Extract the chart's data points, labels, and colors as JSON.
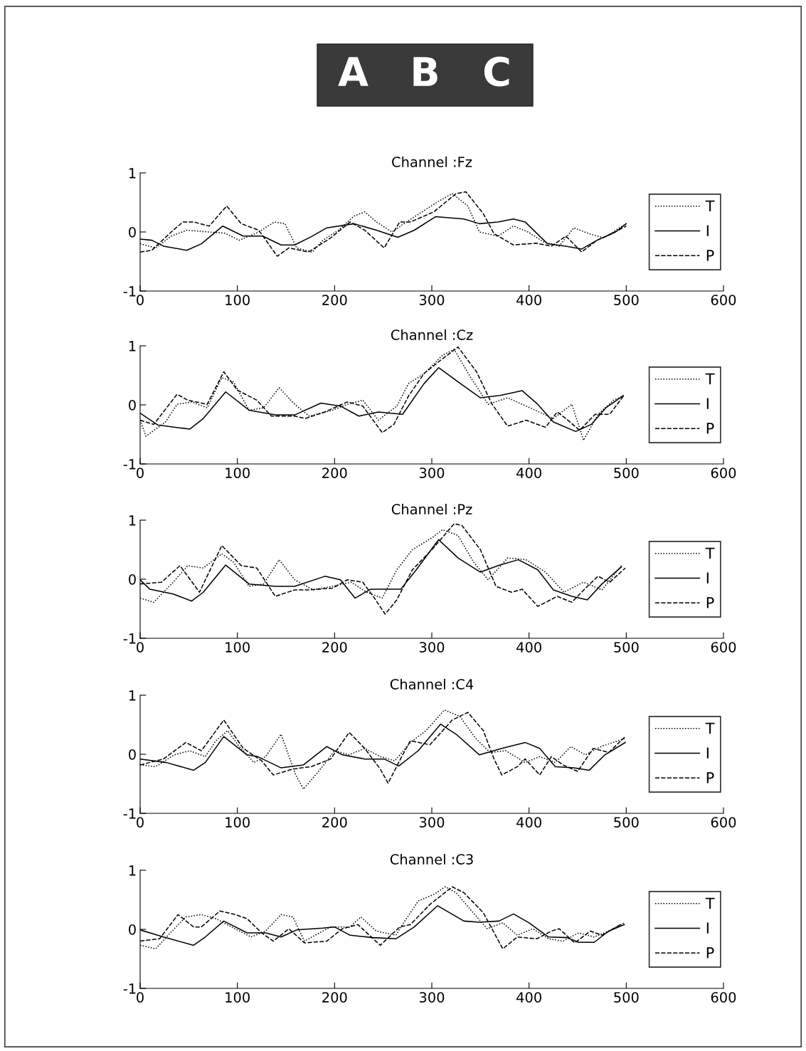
{
  "chart_data": [
    {
      "type": "line",
      "title": "Channel :Fz",
      "annotations": [
        "A",
        "B",
        "C"
      ],
      "xlim": [
        0,
        600
      ],
      "xticks": [
        0,
        100,
        200,
        300,
        400,
        500,
        600
      ],
      "ylim": [
        -1,
        1
      ],
      "yticks": [
        -1,
        0,
        1
      ],
      "grid": false,
      "legend": "right",
      "marker": "none",
      "series": [
        {
          "name": "T",
          "color": "#000000",
          "line_style": "dotted",
          "x": [
            0,
            16,
            32,
            48,
            71,
            87,
            102,
            122,
            138,
            149,
            161,
            177,
            188,
            204,
            220,
            231,
            243,
            259,
            274,
            290,
            306,
            321,
            337,
            349,
            368,
            384,
            399,
            415,
            431,
            446,
            462,
            477,
            493,
            500
          ],
          "values": [
            -0.2,
            -0.27,
            -0.07,
            0.03,
            0,
            -0.02,
            -0.14,
            0,
            0.17,
            0.14,
            -0.27,
            -0.34,
            -0.14,
            0.03,
            0.27,
            0.34,
            0.17,
            0,
            0.17,
            0.34,
            0.51,
            0.65,
            0.44,
            0,
            -0.07,
            0.1,
            0,
            -0.17,
            -0.24,
            0.07,
            -0.03,
            -0.1,
            0.07,
            0.14
          ]
        },
        {
          "name": "I",
          "color": "#000000",
          "line_style": "solid",
          "x": [
            0,
            12,
            24,
            48,
            63,
            85,
            106,
            126,
            145,
            159,
            177,
            192,
            220,
            243,
            265,
            282,
            304,
            333,
            349,
            368,
            384,
            396,
            419,
            438,
            454,
            470,
            489,
            500
          ],
          "values": [
            -0.12,
            -0.14,
            -0.24,
            -0.31,
            -0.2,
            0.1,
            -0.07,
            -0.07,
            -0.22,
            -0.22,
            -0.07,
            0.07,
            0.14,
            0.03,
            -0.09,
            0.03,
            0.26,
            0.22,
            0.14,
            0.17,
            0.22,
            0.17,
            -0.2,
            -0.24,
            -0.29,
            -0.14,
            0,
            0.14
          ]
        },
        {
          "name": "P",
          "color": "#000000",
          "line_style": "dashed",
          "x": [
            0,
            12,
            32,
            44,
            55,
            71,
            89,
            104,
            122,
            141,
            153,
            173,
            196,
            216,
            231,
            251,
            267,
            278,
            302,
            325,
            335,
            353,
            364,
            384,
            407,
            423,
            438,
            454,
            470,
            485,
            500
          ],
          "values": [
            -0.34,
            -0.31,
            0,
            0.17,
            0.17,
            0.1,
            0.44,
            0.14,
            0.03,
            -0.41,
            -0.27,
            -0.34,
            -0.1,
            0.17,
            0.03,
            -0.27,
            0.17,
            0.17,
            0.34,
            0.65,
            0.68,
            0.31,
            -0.03,
            -0.22,
            -0.19,
            -0.24,
            -0.07,
            -0.34,
            -0.14,
            -0.03,
            0.1
          ]
        }
      ]
    },
    {
      "type": "line",
      "title": "Channel :Cz",
      "xlim": [
        0,
        600
      ],
      "xticks": [
        0,
        100,
        200,
        300,
        400,
        500,
        600
      ],
      "ylim": [
        -1,
        1
      ],
      "yticks": [
        -1,
        0,
        1
      ],
      "grid": false,
      "legend": "right",
      "marker": "none",
      "series": [
        {
          "name": "T",
          "color": "#000000",
          "line_style": "dotted",
          "x": [
            0,
            6,
            26,
            38,
            53,
            69,
            84,
            96,
            112,
            127,
            143,
            159,
            174,
            198,
            213,
            229,
            245,
            264,
            276,
            292,
            311,
            323,
            339,
            358,
            378,
            401,
            425,
            444,
            456,
            471,
            487,
            497
          ],
          "values": [
            -0.26,
            -0.53,
            -0.29,
            0.01,
            0.05,
            -0.05,
            0.46,
            0.39,
            -0.09,
            -0.05,
            0.29,
            0.01,
            -0.19,
            -0.09,
            0.01,
            0.08,
            -0.26,
            -0.02,
            0.36,
            0.53,
            0.84,
            0.94,
            0.49,
            0.01,
            0.12,
            -0.05,
            -0.23,
            0.01,
            -0.6,
            -0.16,
            0.08,
            0.15
          ]
        },
        {
          "name": "I",
          "color": "#000000",
          "line_style": "solid",
          "x": [
            0,
            18,
            51,
            65,
            88,
            112,
            139,
            159,
            186,
            206,
            225,
            245,
            270,
            292,
            307,
            327,
            350,
            370,
            393,
            409,
            425,
            448,
            464,
            479,
            497
          ],
          "values": [
            -0.14,
            -0.34,
            -0.41,
            -0.23,
            0.22,
            -0.09,
            -0.17,
            -0.17,
            0.03,
            -0.02,
            -0.19,
            -0.12,
            -0.16,
            0.36,
            0.63,
            0.39,
            0.12,
            0.16,
            0.24,
            0.01,
            -0.29,
            -0.45,
            -0.33,
            -0.05,
            0.16
          ]
        },
        {
          "name": "P",
          "color": "#000000",
          "line_style": "dashed",
          "x": [
            0,
            14,
            38,
            49,
            69,
            86,
            100,
            120,
            135,
            159,
            170,
            190,
            213,
            229,
            249,
            261,
            276,
            292,
            307,
            327,
            346,
            362,
            378,
            397,
            417,
            429,
            440,
            452,
            468,
            483,
            497
          ],
          "values": [
            -0.26,
            -0.33,
            0.18,
            0.08,
            0.01,
            0.56,
            0.25,
            0.08,
            -0.19,
            -0.19,
            -0.23,
            -0.12,
            0.05,
            -0.02,
            -0.47,
            -0.33,
            0.15,
            0.53,
            0.73,
            0.98,
            0.56,
            0.01,
            -0.36,
            -0.26,
            -0.38,
            -0.12,
            -0.26,
            -0.43,
            -0.16,
            -0.16,
            0.15
          ]
        }
      ]
    },
    {
      "type": "line",
      "title": "Channel :Pz",
      "xlim": [
        0,
        600
      ],
      "xticks": [
        0,
        100,
        200,
        300,
        400,
        500,
        600
      ],
      "ylim": [
        -1,
        1
      ],
      "yticks": [
        -1,
        0,
        1
      ],
      "grid": false,
      "legend": "right",
      "marker": "none",
      "series": [
        {
          "name": "T",
          "color": "#000000",
          "line_style": "dotted",
          "x": [
            0,
            14,
            34,
            49,
            65,
            84,
            96,
            112,
            127,
            143,
            159,
            178,
            198,
            217,
            233,
            249,
            264,
            280,
            300,
            311,
            327,
            343,
            358,
            378,
            397,
            417,
            436,
            456,
            475,
            495
          ],
          "values": [
            -0.32,
            -0.39,
            -0.05,
            0.23,
            0.19,
            0.43,
            0.29,
            -0.12,
            -0.08,
            0.33,
            -0.01,
            -0.18,
            -0.12,
            -0.05,
            -0.22,
            -0.32,
            0.16,
            0.5,
            0.7,
            0.84,
            0.74,
            0.29,
            -0.01,
            0.36,
            0.33,
            0.12,
            -0.22,
            -0.05,
            -0.18,
            0.23
          ]
        },
        {
          "name": "I",
          "color": "#000000",
          "line_style": "solid",
          "x": [
            0,
            10,
            34,
            53,
            65,
            88,
            112,
            139,
            159,
            190,
            206,
            221,
            237,
            268,
            284,
            307,
            327,
            350,
            370,
            389,
            409,
            425,
            444,
            460,
            475,
            495
          ],
          "values": [
            -0.01,
            -0.17,
            -0.25,
            -0.37,
            -0.22,
            0.24,
            -0.08,
            -0.12,
            -0.12,
            0.05,
            -0.01,
            -0.32,
            -0.17,
            -0.17,
            0.16,
            0.67,
            0.36,
            0.12,
            0.24,
            0.33,
            0.16,
            -0.18,
            -0.29,
            -0.35,
            -0.08,
            0.21
          ]
        },
        {
          "name": "P",
          "color": "#000000",
          "line_style": "dashed",
          "x": [
            0,
            22,
            41,
            61,
            84,
            104,
            120,
            139,
            159,
            174,
            198,
            213,
            229,
            241,
            252,
            264,
            280,
            300,
            323,
            331,
            350,
            366,
            382,
            393,
            409,
            429,
            444,
            460,
            471,
            483,
            499
          ],
          "values": [
            -0.08,
            -0.05,
            0.23,
            -0.22,
            0.57,
            0.23,
            0.19,
            -0.29,
            -0.18,
            -0.18,
            -0.15,
            -0.01,
            -0.05,
            -0.32,
            -0.59,
            -0.35,
            0.16,
            0.5,
            0.94,
            0.91,
            0.5,
            -0.12,
            -0.22,
            -0.17,
            -0.46,
            -0.29,
            -0.39,
            -0.12,
            0.05,
            -0.05,
            0.19
          ]
        }
      ]
    },
    {
      "type": "line",
      "title": "Channel :C4",
      "xlim": [
        0,
        600
      ],
      "xticks": [
        0,
        100,
        200,
        300,
        400,
        500,
        600
      ],
      "ylim": [
        -1,
        1
      ],
      "yticks": [
        -1,
        0,
        1
      ],
      "grid": false,
      "legend": "right",
      "marker": "none",
      "series": [
        {
          "name": "T",
          "color": "#000000",
          "line_style": "dotted",
          "x": [
            0,
            16,
            35,
            51,
            67,
            78,
            90,
            102,
            117,
            129,
            145,
            160,
            168,
            184,
            200,
            215,
            231,
            247,
            262,
            278,
            294,
            313,
            329,
            345,
            360,
            376,
            396,
            411,
            427,
            443,
            458,
            474,
            499
          ],
          "values": [
            -0.18,
            -0.21,
            -0.01,
            0.06,
            -0.04,
            0.23,
            0.4,
            0.13,
            -0.14,
            -0.04,
            0.34,
            -0.35,
            -0.59,
            -0.28,
            0.06,
            -0.01,
            0.1,
            -0.04,
            -0.11,
            0.2,
            0.4,
            0.75,
            0.64,
            0.27,
            0.03,
            0.06,
            -0.14,
            -0.04,
            -0.14,
            0.13,
            -0.01,
            0.13,
            0.27
          ]
        },
        {
          "name": "I",
          "color": "#000000",
          "line_style": "solid",
          "x": [
            0,
            27,
            55,
            67,
            86,
            110,
            121,
            145,
            168,
            192,
            208,
            231,
            251,
            266,
            286,
            309,
            325,
            349,
            372,
            396,
            411,
            427,
            446,
            462,
            478,
            499
          ],
          "values": [
            -0.08,
            -0.14,
            -0.27,
            -0.14,
            0.3,
            -0.01,
            -0.04,
            -0.23,
            -0.18,
            0.13,
            -0.01,
            -0.08,
            -0.08,
            -0.2,
            0.06,
            0.51,
            0.34,
            -0.01,
            0.1,
            0.2,
            0.1,
            -0.21,
            -0.23,
            -0.27,
            -0.01,
            0.2
          ]
        },
        {
          "name": "P",
          "color": "#000000",
          "line_style": "dashed",
          "x": [
            0,
            24,
            47,
            63,
            86,
            106,
            125,
            137,
            157,
            176,
            196,
            215,
            231,
            247,
            255,
            270,
            278,
            298,
            321,
            337,
            353,
            364,
            372,
            388,
            396,
            411,
            423,
            435,
            450,
            466,
            482,
            499
          ],
          "values": [
            -0.18,
            -0.08,
            0.2,
            0.06,
            0.58,
            0.1,
            -0.11,
            -0.35,
            -0.25,
            -0.21,
            -0.08,
            0.37,
            0.1,
            -0.25,
            -0.49,
            -0.01,
            0.23,
            0.16,
            0.58,
            0.71,
            0.4,
            -0.08,
            -0.35,
            -0.21,
            -0.08,
            -0.35,
            -0.04,
            -0.18,
            -0.29,
            0.1,
            0.03,
            0.3
          ]
        }
      ]
    },
    {
      "type": "line",
      "title": "Channel :C3",
      "xlim": [
        0,
        600
      ],
      "xticks": [
        0,
        100,
        200,
        300,
        400,
        500,
        600
      ],
      "ylim": [
        -1,
        1
      ],
      "yticks": [
        -1,
        0,
        1
      ],
      "grid": false,
      "legend": "right",
      "marker": "none",
      "series": [
        {
          "name": "T",
          "color": "#000000",
          "line_style": "dotted",
          "x": [
            0,
            16,
            31,
            47,
            63,
            78,
            94,
            114,
            129,
            145,
            157,
            169,
            180,
            196,
            216,
            227,
            243,
            263,
            271,
            286,
            302,
            314,
            325,
            341,
            357,
            373,
            388,
            404,
            420,
            435,
            451,
            467,
            482,
            498
          ],
          "values": [
            -0.27,
            -0.33,
            -0.06,
            0.21,
            0.25,
            0.18,
            0.04,
            -0.13,
            -0.03,
            0.25,
            0.21,
            -0.2,
            -0.1,
            0.04,
            0.04,
            0.21,
            -0.03,
            -0.1,
            0.11,
            0.48,
            0.59,
            0.72,
            0.62,
            0.31,
            0.01,
            0.11,
            -0.1,
            0.01,
            -0.16,
            -0.2,
            -0.06,
            -0.13,
            -0.03,
            0.11
          ]
        },
        {
          "name": "I",
          "color": "#000000",
          "line_style": "solid",
          "x": [
            0,
            24,
            55,
            67,
            86,
            110,
            129,
            145,
            161,
            188,
            200,
            216,
            239,
            263,
            282,
            306,
            333,
            349,
            369,
            384,
            400,
            420,
            439,
            451,
            467,
            482,
            498
          ],
          "values": [
            -0.01,
            -0.13,
            -0.27,
            -0.13,
            0.14,
            -0.06,
            -0.06,
            -0.13,
            -0.01,
            0.02,
            0.04,
            -0.1,
            -0.14,
            -0.16,
            0.04,
            0.4,
            0.14,
            0.12,
            0.14,
            0.26,
            0.11,
            -0.13,
            -0.14,
            -0.22,
            -0.22,
            -0.03,
            0.08
          ]
        },
        {
          "name": "P",
          "color": "#000000",
          "line_style": "dashed",
          "x": [
            0,
            20,
            39,
            55,
            63,
            82,
            98,
            110,
            125,
            137,
            153,
            169,
            192,
            208,
            224,
            247,
            267,
            278,
            298,
            321,
            333,
            353,
            373,
            388,
            408,
            423,
            431,
            447,
            463,
            475,
            494
          ],
          "values": [
            -0.2,
            -0.16,
            0.25,
            0.04,
            0.04,
            0.31,
            0.25,
            0.18,
            -0.06,
            -0.2,
            0.01,
            -0.23,
            -0.2,
            0.01,
            0.08,
            -0.27,
            0.04,
            0.08,
            0.42,
            0.72,
            0.62,
            0.28,
            -0.33,
            -0.13,
            -0.16,
            -0.03,
            0.01,
            -0.23,
            -0.03,
            -0.1,
            0.08
          ]
        }
      ]
    }
  ]
}
